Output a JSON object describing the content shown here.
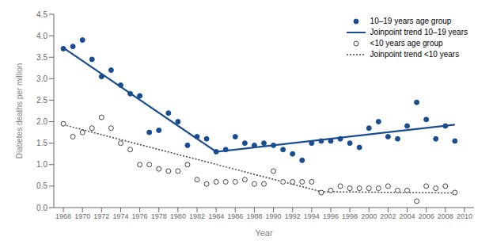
{
  "chart_data": {
    "type": "scatter",
    "xlabel": "Year",
    "ylabel": "Diabetes deaths per million",
    "xlim": [
      1967,
      2011
    ],
    "ylim": [
      0,
      4.5
    ],
    "xticks": [
      1968,
      1970,
      1972,
      1974,
      1976,
      1978,
      1980,
      1982,
      1984,
      1986,
      1988,
      1990,
      1992,
      1994,
      1996,
      1998,
      2000,
      2002,
      2004,
      2006,
      2008,
      2010
    ],
    "yticks": [
      {
        "value": 0,
        "label": "0.0"
      },
      0.5,
      {
        "value": 1,
        "label": "1.0"
      },
      1.5,
      {
        "value": 2,
        "label": "2.0"
      },
      2.5,
      {
        "value": 3,
        "label": "3.0"
      },
      3.5,
      {
        "value": 4,
        "label": "4.0"
      },
      4.5
    ],
    "grid": false,
    "legend": "upper right",
    "series": [
      {
        "name": "10–19 years age group",
        "type": "scatter",
        "marker": "filled_circle",
        "color": "#1a4d8f",
        "x": [
          1968,
          1969,
          1970,
          1971,
          1972,
          1973,
          1974,
          1975,
          1976,
          1977,
          1978,
          1979,
          1980,
          1981,
          1982,
          1983,
          1984,
          1985,
          1986,
          1987,
          1988,
          1989,
          1990,
          1991,
          1992,
          1993,
          1994,
          1995,
          1996,
          1997,
          1998,
          1999,
          2000,
          2001,
          2002,
          2003,
          2004,
          2005,
          2006,
          2007,
          2008,
          2009
        ],
        "values": [
          3.7,
          3.75,
          3.9,
          3.45,
          3.05,
          3.2,
          2.85,
          2.65,
          2.6,
          1.75,
          1.8,
          2.2,
          2.0,
          1.45,
          1.65,
          1.6,
          1.3,
          1.35,
          1.65,
          1.5,
          1.45,
          1.5,
          1.45,
          1.35,
          1.25,
          1.1,
          1.5,
          1.55,
          1.55,
          1.6,
          1.5,
          1.4,
          1.85,
          2.0,
          1.65,
          1.6,
          1.9,
          2.45,
          2.05,
          1.6,
          1.9,
          1.55
        ]
      },
      {
        "name": "Joinpoint trend 10–19 years",
        "type": "line",
        "line_style": "solid",
        "color": "#1a4d8f",
        "x": [
          1968,
          1984,
          2009
        ],
        "values": [
          3.72,
          1.3,
          1.93
        ]
      },
      {
        "name": "<10 years age group",
        "type": "scatter",
        "marker": "open_circle",
        "color": "#444444",
        "x": [
          1968,
          1969,
          1970,
          1971,
          1972,
          1973,
          1974,
          1975,
          1976,
          1977,
          1978,
          1979,
          1980,
          1981,
          1982,
          1983,
          1984,
          1985,
          1986,
          1987,
          1988,
          1989,
          1990,
          1991,
          1992,
          1993,
          1994,
          1995,
          1996,
          1997,
          1998,
          1999,
          2000,
          2001,
          2002,
          2003,
          2004,
          2005,
          2006,
          2007,
          2008,
          2009
        ],
        "values": [
          1.95,
          1.65,
          1.75,
          1.85,
          2.1,
          1.85,
          1.5,
          1.35,
          1.0,
          1.0,
          0.9,
          0.85,
          0.85,
          1.0,
          0.65,
          0.55,
          0.6,
          0.6,
          0.6,
          0.65,
          0.55,
          0.55,
          0.85,
          0.6,
          0.6,
          0.6,
          0.6,
          0.35,
          0.4,
          0.5,
          0.45,
          0.45,
          0.45,
          0.45,
          0.5,
          0.4,
          0.4,
          0.15,
          0.5,
          0.45,
          0.5,
          0.35
        ]
      },
      {
        "name": "Joinpoint trend <10 years",
        "type": "line",
        "line_style": "dotted",
        "color": "#444444",
        "x": [
          1968,
          1995,
          2009
        ],
        "values": [
          1.93,
          0.37,
          0.34
        ]
      }
    ]
  }
}
